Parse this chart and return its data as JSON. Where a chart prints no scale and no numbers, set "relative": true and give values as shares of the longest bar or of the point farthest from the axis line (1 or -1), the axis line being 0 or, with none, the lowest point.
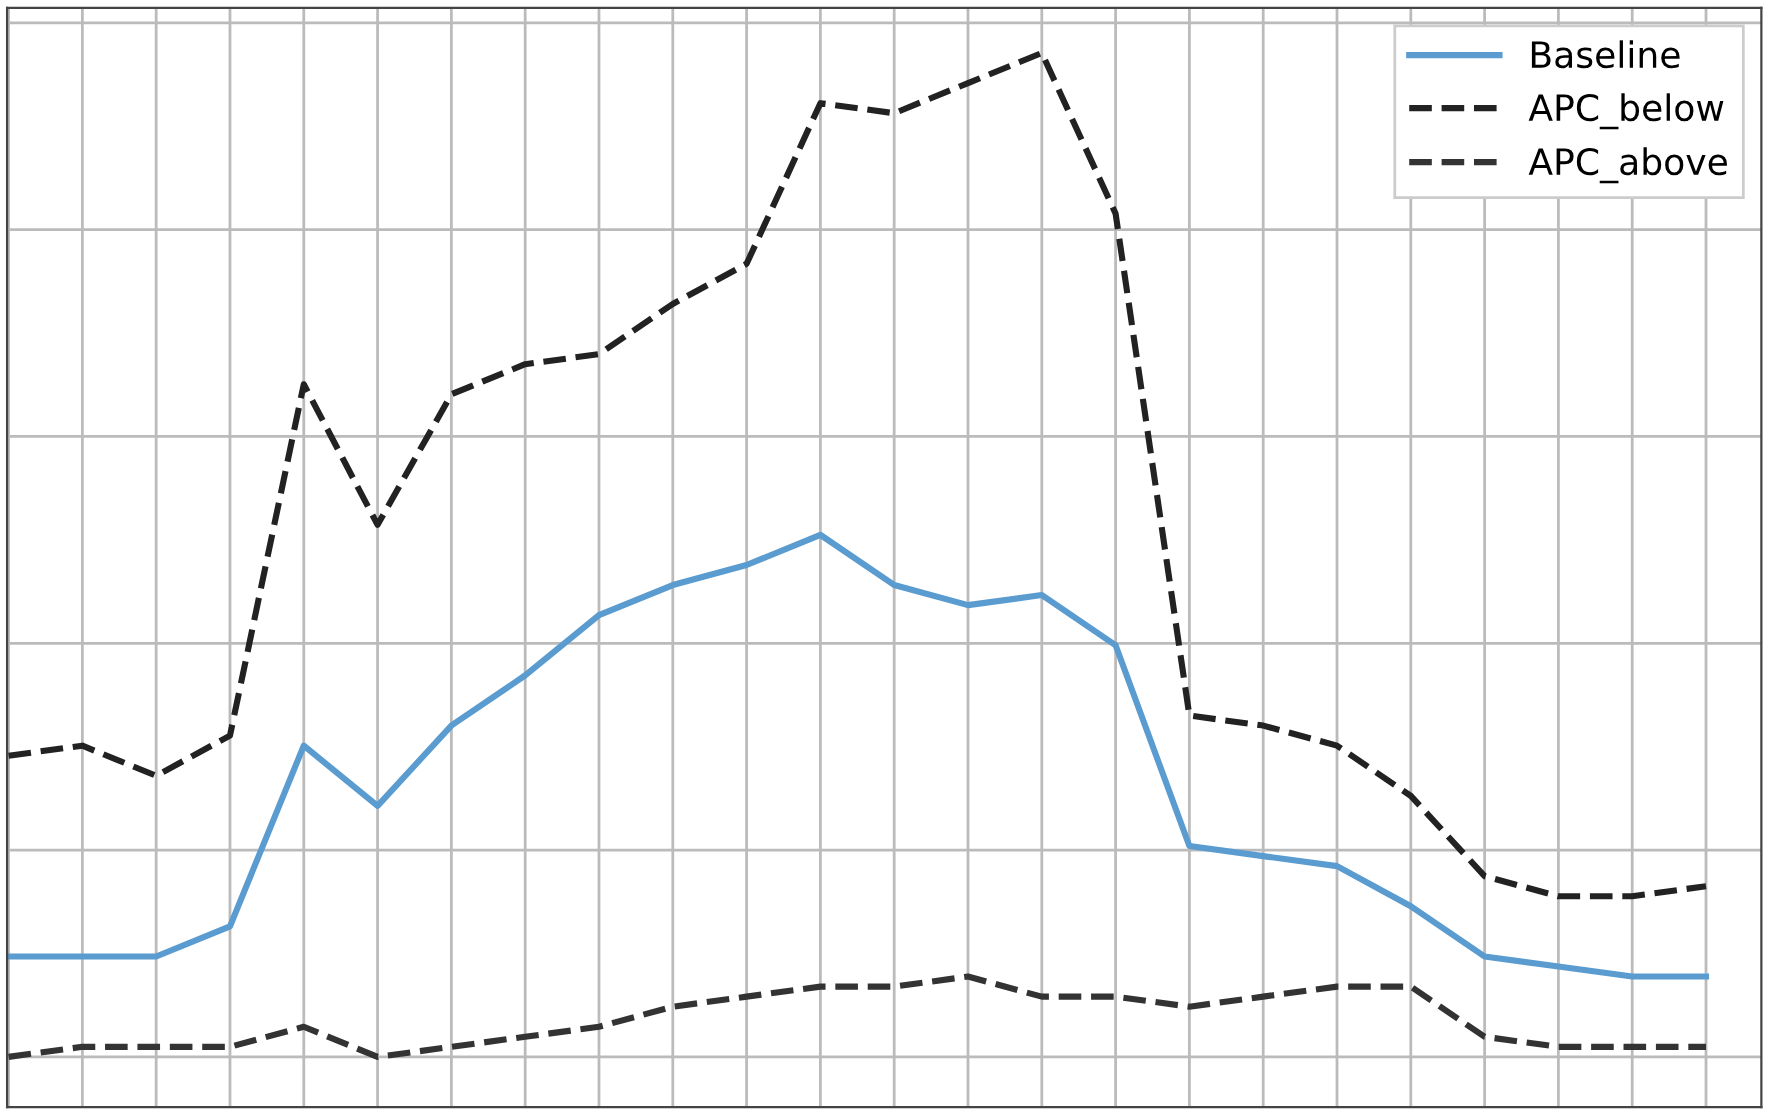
{
  "chart_data": {
    "type": "line",
    "relative": true,
    "grid": true,
    "legend": "top right",
    "categories": [
      null,
      null,
      null,
      null,
      null,
      null,
      null,
      null,
      null,
      null,
      null,
      null,
      null,
      null,
      null,
      null,
      null,
      null,
      null,
      null,
      null,
      null,
      null,
      null
    ],
    "series": [
      {
        "name": "Baseline",
        "color": "#5a9bd0",
        "line_style": "solid",
        "values": [
          0.1,
          0.1,
          0.1,
          0.13,
          0.31,
          0.25,
          0.33,
          0.38,
          0.44,
          0.47,
          0.49,
          0.52,
          0.47,
          0.45,
          0.46,
          0.41,
          0.21,
          0.2,
          0.19,
          0.15,
          0.1,
          0.09,
          0.08,
          0.08
        ]
      },
      {
        "name": "APC_below",
        "color": "#222222",
        "line_style": "dashed",
        "values": [
          0.3,
          0.31,
          0.28,
          0.32,
          0.67,
          0.53,
          0.66,
          0.69,
          0.7,
          0.75,
          0.79,
          0.95,
          0.94,
          0.97,
          1,
          0.84,
          0.34,
          0.33,
          0.31,
          0.26,
          0.18,
          0.16,
          0.16,
          0.17
        ]
      },
      {
        "name": "APC_above",
        "color": "#333333",
        "line_style": "dashed",
        "values": [
          0.0,
          0.01,
          0.01,
          0.01,
          0.03,
          0.0,
          0.01,
          0.02,
          0.03,
          0.05,
          0.06,
          0.07,
          0.07,
          0.08,
          0.06,
          0.06,
          0.05,
          0.06,
          0.07,
          0.07,
          0.02,
          0.01,
          0.01,
          0.01
        ]
      }
    ]
  }
}
